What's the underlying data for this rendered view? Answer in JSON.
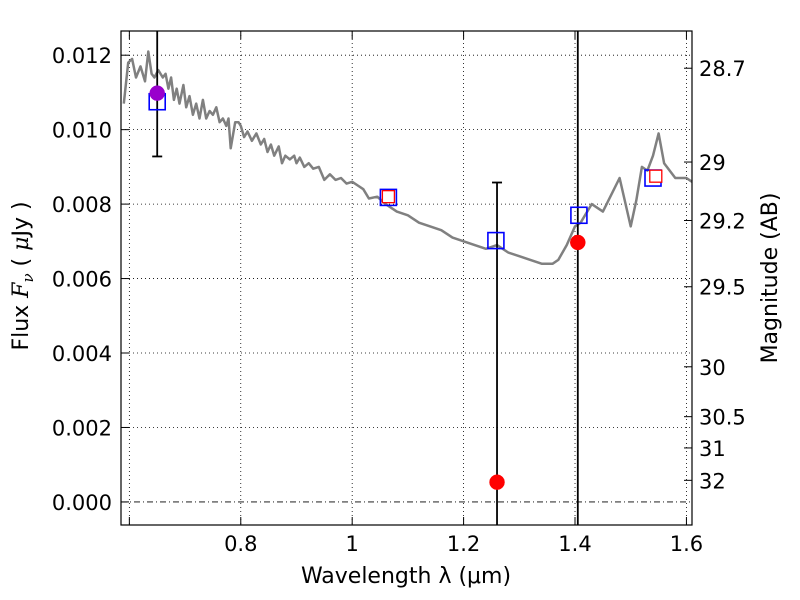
{
  "chart_data": {
    "type": "scatter",
    "xlabel": "Wavelength  λ (μm)",
    "ylabel": "Flux  F_ν  ( μJy )",
    "ylabel_parts": [
      "Flux  ",
      "F",
      "ν",
      "  ( ",
      "μ",
      "Jy )"
    ],
    "y2label": "Magnitude (AB)",
    "xlim": [
      0.585,
      1.61
    ],
    "ylim": [
      -0.00062,
      0.01265
    ],
    "grid": true,
    "x_ticks": [
      {
        "value": 0.6,
        "label": ""
      },
      {
        "value": 0.8,
        "label": "0.8"
      },
      {
        "value": 1.0,
        "label": "1"
      },
      {
        "value": 1.2,
        "label": "1.2"
      },
      {
        "value": 1.4,
        "label": "1.4"
      },
      {
        "value": 1.6,
        "label": "1.6"
      }
    ],
    "y_ticks": [
      {
        "value": 0.0,
        "label": "0.000"
      },
      {
        "value": 0.002,
        "label": "0.002"
      },
      {
        "value": 0.004,
        "label": "0.004"
      },
      {
        "value": 0.006,
        "label": "0.006"
      },
      {
        "value": 0.008,
        "label": "0.008"
      },
      {
        "value": 0.01,
        "label": "0.010"
      },
      {
        "value": 0.012,
        "label": "0.012"
      }
    ],
    "mag_ticks": [
      {
        "flux": 0.01165,
        "label": "28.7"
      },
      {
        "flux": 0.00913,
        "label": "29"
      },
      {
        "flux": 0.00756,
        "label": "29.2"
      },
      {
        "flux": 0.00578,
        "label": "29.5"
      },
      {
        "flux": 0.00363,
        "label": "30"
      },
      {
        "flux": 0.00229,
        "label": "30.5"
      },
      {
        "flux": 0.00145,
        "label": "31"
      },
      {
        "flux": 0.00058,
        "label": "32"
      }
    ],
    "model_spectrum": {
      "name": "model SED",
      "color": "#808080",
      "x": [
        0.59,
        0.598,
        0.605,
        0.612,
        0.62,
        0.628,
        0.634,
        0.64,
        0.645,
        0.652,
        0.66,
        0.665,
        0.67,
        0.675,
        0.68,
        0.685,
        0.69,
        0.697,
        0.702,
        0.708,
        0.714,
        0.72,
        0.726,
        0.732,
        0.738,
        0.744,
        0.75,
        0.756,
        0.762,
        0.768,
        0.774,
        0.778,
        0.782,
        0.79,
        0.796,
        0.8,
        0.806,
        0.812,
        0.82,
        0.828,
        0.836,
        0.842,
        0.848,
        0.854,
        0.86,
        0.868,
        0.874,
        0.88,
        0.888,
        0.896,
        0.9,
        0.906,
        0.914,
        0.922,
        0.93,
        0.94,
        0.95,
        0.96,
        0.97,
        0.98,
        0.99,
        1.0,
        1.01,
        1.02,
        1.03,
        1.045,
        1.06,
        1.08,
        1.1,
        1.12,
        1.14,
        1.16,
        1.18,
        1.2,
        1.22,
        1.24,
        1.26,
        1.28,
        1.3,
        1.32,
        1.34,
        1.36,
        1.37,
        1.385,
        1.4,
        1.41,
        1.43,
        1.45,
        1.48,
        1.5,
        1.51,
        1.52,
        1.53,
        1.54,
        1.55,
        1.56,
        1.58,
        1.6,
        1.61
      ],
      "y": [
        0.0107,
        0.0118,
        0.0119,
        0.0114,
        0.0117,
        0.0113,
        0.0121,
        0.0115,
        0.0114,
        0.0116,
        0.0114,
        0.0115,
        0.0111,
        0.0114,
        0.0108,
        0.0111,
        0.0107,
        0.0112,
        0.0106,
        0.0109,
        0.0104,
        0.0107,
        0.0103,
        0.0108,
        0.0103,
        0.0105,
        0.0104,
        0.0106,
        0.0102,
        0.0103,
        0.0101,
        0.0103,
        0.0095,
        0.0102,
        0.0102,
        0.0101,
        0.0098,
        0.00995,
        0.0097,
        0.0099,
        0.0096,
        0.00975,
        0.0094,
        0.0096,
        0.0093,
        0.00955,
        0.0091,
        0.0093,
        0.0092,
        0.0093,
        0.0091,
        0.00925,
        0.009,
        0.0091,
        0.00895,
        0.009,
        0.00865,
        0.0088,
        0.00865,
        0.0087,
        0.00855,
        0.0086,
        0.0085,
        0.0084,
        0.00815,
        0.0082,
        0.008,
        0.0078,
        0.0077,
        0.0075,
        0.0074,
        0.0073,
        0.0071,
        0.007,
        0.0069,
        0.0068,
        0.0069,
        0.0067,
        0.0066,
        0.0065,
        0.0064,
        0.0064,
        0.0065,
        0.0069,
        0.0074,
        0.0075,
        0.008,
        0.0078,
        0.0087,
        0.0074,
        0.0081,
        0.009,
        0.0089,
        0.0093,
        0.0099,
        0.0091,
        0.0087,
        0.0087,
        0.0086
      ]
    },
    "model_photometry": {
      "name": "model bands",
      "color": "#0000ff",
      "points": [
        {
          "x": 0.65,
          "y": 0.01075
        },
        {
          "x": 1.065,
          "y": 0.00818
        },
        {
          "x": 1.258,
          "y": 0.00702
        },
        {
          "x": 1.407,
          "y": 0.0077
        },
        {
          "x": 1.54,
          "y": 0.0087
        }
      ]
    },
    "observed": {
      "name": "observed photometry",
      "points": [
        {
          "x": 0.65,
          "y": 0.01098,
          "err": 0.0017,
          "color": "#9900cc"
        },
        {
          "x": 1.065,
          "y": 0.0082,
          "err": 0.0,
          "color": "#ff0000",
          "hollow": true
        },
        {
          "x": 1.26,
          "y": 0.00053,
          "err": 0.00805,
          "color": "#ff0000"
        },
        {
          "x": 1.405,
          "y": 0.00697,
          "err": 0.0132,
          "color": "#ff0000"
        },
        {
          "x": 1.545,
          "y": 0.00875,
          "err": 0.0,
          "color": "#ff0000",
          "hollow": true
        }
      ]
    }
  }
}
